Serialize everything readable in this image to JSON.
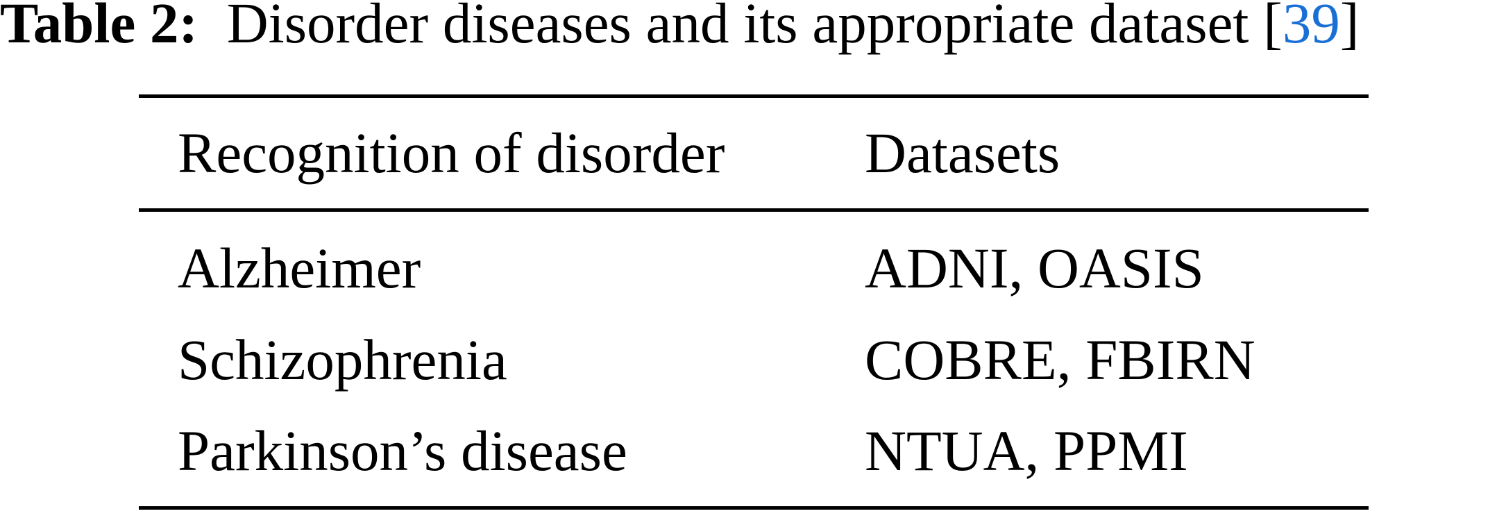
{
  "caption": {
    "label": "Table 2:",
    "text": "Disorder diseases and its appropriate dataset",
    "ref_open": "[",
    "ref": "39",
    "ref_close": "]",
    "ref_color": "#1a6fd6"
  },
  "table": {
    "headers": [
      "Recognition of disorder",
      "Datasets"
    ],
    "rows": [
      [
        "Alzheimer",
        "ADNI, OASIS"
      ],
      [
        "Schizophrenia",
        "COBRE, FBIRN"
      ],
      [
        "Parkinson’s disease",
        "NTUA, PPMI"
      ]
    ]
  }
}
